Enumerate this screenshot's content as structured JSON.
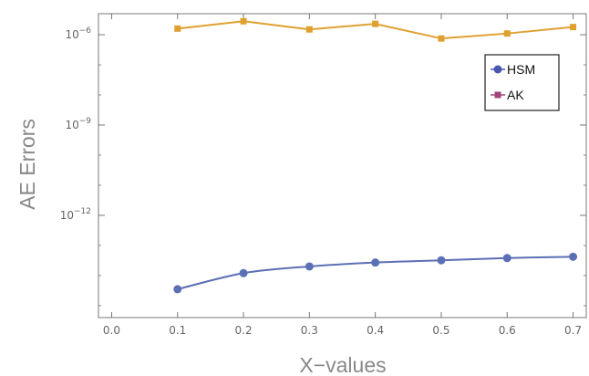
{
  "chart_data": {
    "type": "line",
    "title": "",
    "xlabel": "X−values",
    "ylabel": "AE Errors",
    "x_ticks": [
      "0.0",
      "0.1",
      "0.2",
      "0.3",
      "0.4",
      "0.5",
      "0.6",
      "0.7"
    ],
    "y_ticks": [
      {
        "base": "10",
        "exp": "−6",
        "value": 1e-06
      },
      {
        "base": "10",
        "exp": "−9",
        "value": 1e-09
      },
      {
        "base": "10",
        "exp": "−12",
        "value": 1e-12
      }
    ],
    "xlim": [
      -0.02,
      0.72
    ],
    "ylim": [
      4e-16,
      5e-06
    ],
    "y_scale": "log",
    "grid": false,
    "legend_position": "top-right",
    "series": [
      {
        "name": "HSM",
        "color": "#5b6fb5",
        "marker": "circle",
        "x": [
          0.1,
          0.2,
          0.3,
          0.4,
          0.5,
          0.6,
          0.7
        ],
        "y": [
          3.5e-15,
          1.2e-14,
          2e-14,
          2.7e-14,
          3.2e-14,
          3.8e-14,
          4.2e-14
        ]
      },
      {
        "name": "AK",
        "color": "#e0a030",
        "marker": "square",
        "x": [
          0.1,
          0.2,
          0.3,
          0.4,
          0.5,
          0.6,
          0.7
        ],
        "y": [
          1.6e-06,
          2.8e-06,
          1.5e-06,
          2.3e-06,
          7.5e-07,
          1.1e-06,
          1.8e-06
        ]
      }
    ],
    "legend": [
      {
        "label": "HSM",
        "swatch_color": "#4a55b0",
        "marker": "circle"
      },
      {
        "label": "AK",
        "swatch_color": "#a0457a",
        "marker": "square"
      }
    ]
  }
}
